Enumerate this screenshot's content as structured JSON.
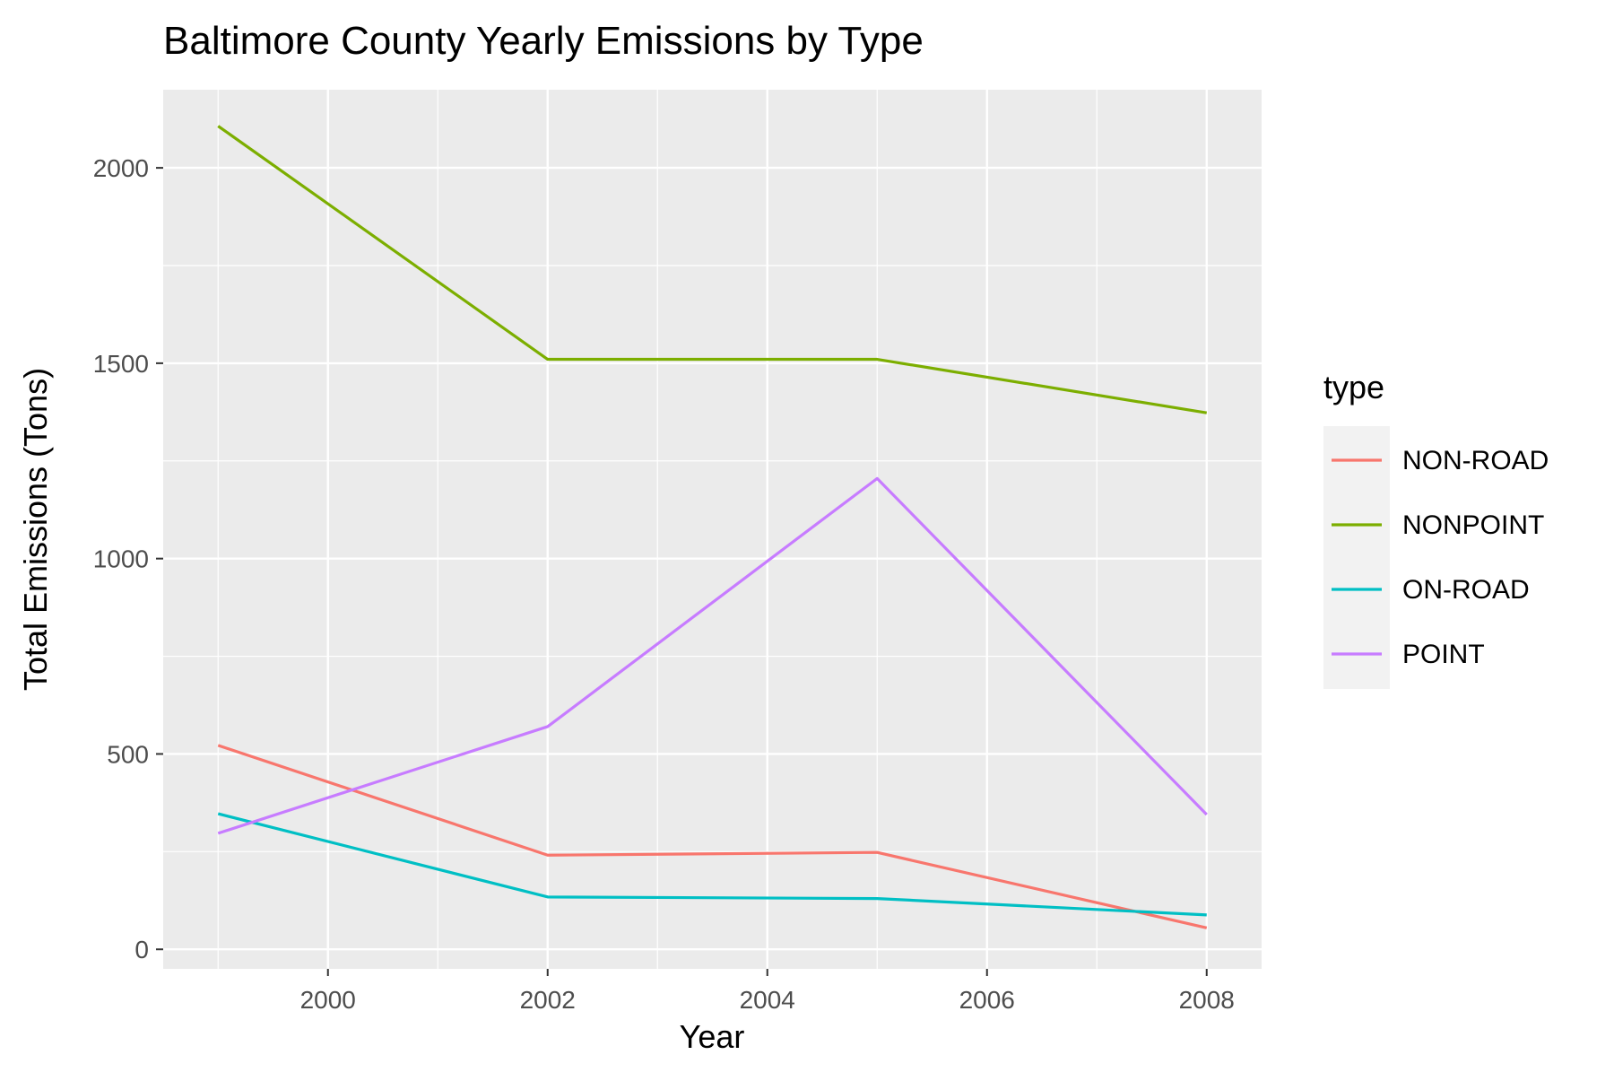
{
  "chart_data": {
    "type": "line",
    "title": "Baltimore County Yearly Emissions by Type",
    "xlabel": "Year",
    "ylabel": "Total Emissions (Tons)",
    "x": [
      1999,
      2002,
      2005,
      2008
    ],
    "xlim": [
      1998.5,
      2008.5
    ],
    "ylim": [
      -50,
      2200
    ],
    "xticks": [
      2000,
      2002,
      2004,
      2006,
      2008
    ],
    "yticks": [
      0,
      500,
      1000,
      1500,
      2000
    ],
    "grid": true,
    "legend": {
      "title": "type",
      "position": "right"
    },
    "series": [
      {
        "name": "NON-ROAD",
        "color": "#F8766D",
        "values": [
          522,
          241,
          248,
          55
        ]
      },
      {
        "name": "NONPOINT",
        "color": "#7CAE00",
        "values": [
          2107,
          1510,
          1510,
          1373
        ]
      },
      {
        "name": "ON-ROAD",
        "color": "#00BFC4",
        "values": [
          347,
          134,
          130,
          88
        ]
      },
      {
        "name": "POINT",
        "color": "#C77CFF",
        "values": [
          297,
          570,
          1205,
          345
        ]
      }
    ]
  }
}
